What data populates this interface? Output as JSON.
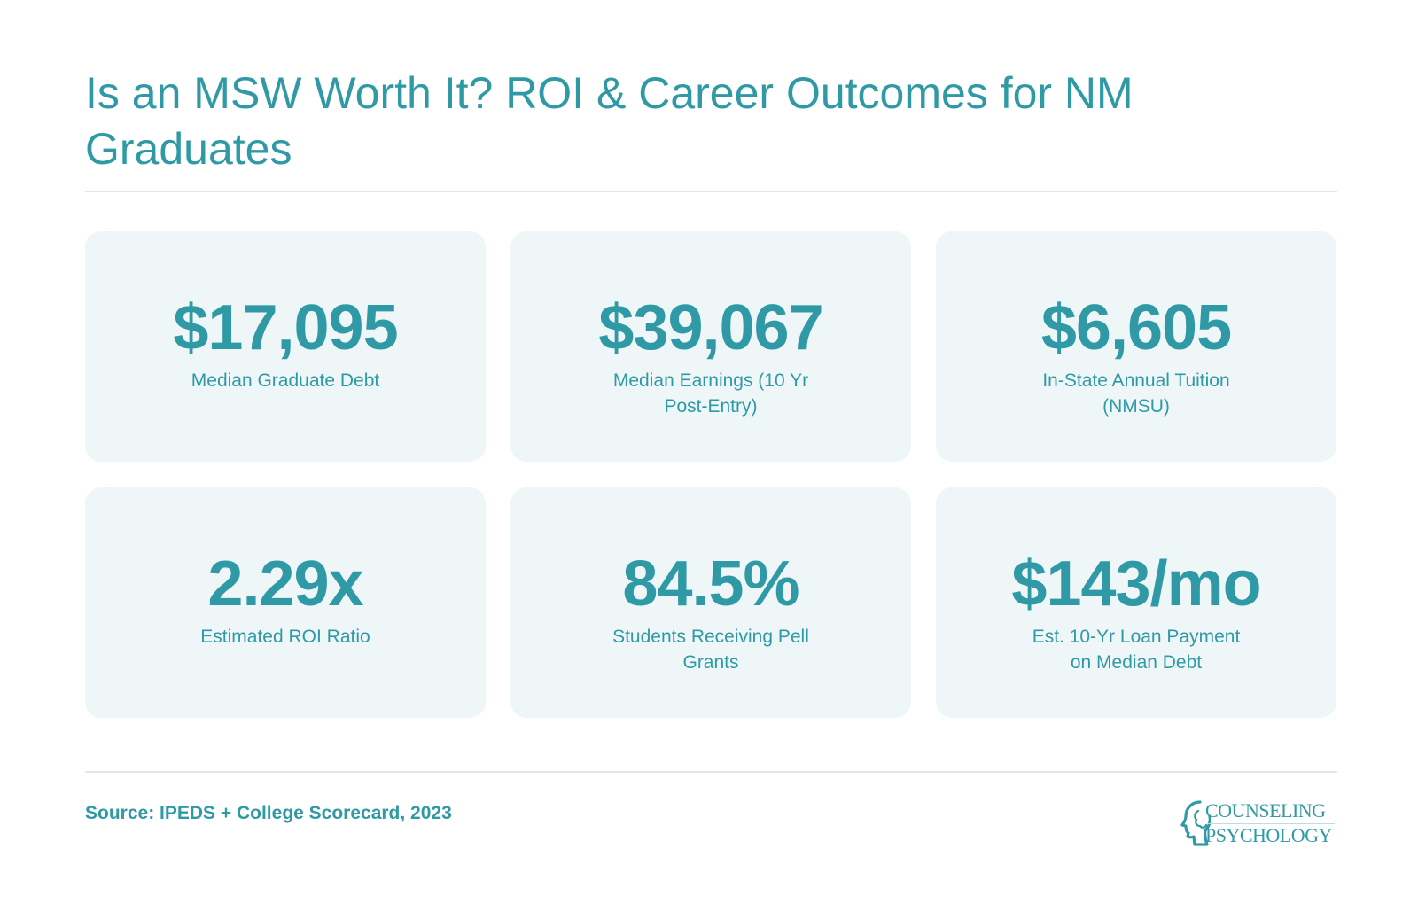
{
  "header": {
    "title": "Is an MSW Worth It? ROI & Career Outcomes for NM Graduates"
  },
  "stats": [
    {
      "value": "$17,095",
      "label": "Median Graduate Debt"
    },
    {
      "value": "$39,067",
      "label": "Median Earnings (10 Yr Post-Entry)"
    },
    {
      "value": "$6,605",
      "label": "In-State Annual Tuition (NMSU)"
    },
    {
      "value": "2.29x",
      "label": "Estimated ROI Ratio"
    },
    {
      "value": "84.5%",
      "label": "Students Receiving Pell Grants"
    },
    {
      "value": "$143/mo",
      "label": "Est. 10-Yr Loan Payment on Median Debt"
    }
  ],
  "footer": {
    "source": "Source: IPEDS + College Scorecard, 2023",
    "logo": {
      "line1": "COUNSELING",
      "line2": "PSYCHOLOGY",
      "icon": "head-profile-icon"
    }
  },
  "colors": {
    "accent": "#2f9aa5",
    "card_background": "#eef6f8",
    "rule": "#dde9ee"
  }
}
